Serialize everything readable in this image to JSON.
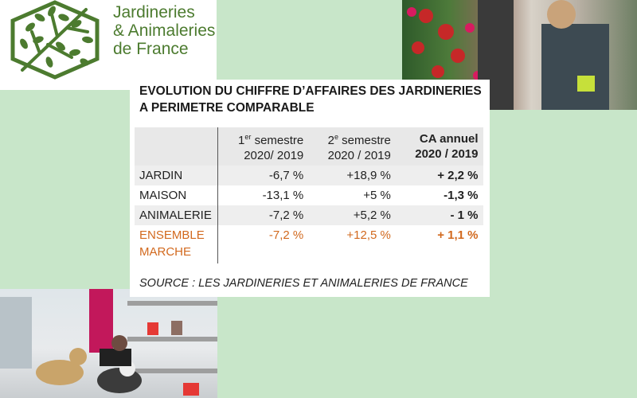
{
  "logo": {
    "icon": "tree-leaves-hexagon-icon",
    "line1": "Jardineries",
    "line2": "& Animaleries",
    "line3": "de France",
    "color": "#4c7b2f"
  },
  "photos": {
    "top": "garden-center-workers-photo",
    "bottom": "pet-store-dogs-photo"
  },
  "card": {
    "title": "EVOLUTION DU CHIFFRE D’AFFAIRES DES JARDINERIES A PERIMETRE COMPARABLE",
    "headers": {
      "col1_num": "1",
      "col1_sup": "er",
      "col1_rest": " semestre",
      "col1_line2": "2020/ 2019",
      "col2_num": "2",
      "col2_sup": "e",
      "col2_rest": " semestre",
      "col2_line2": "2020 / 2019",
      "col3_line1": "CA annuel",
      "col3_line2": "2020 / 2019"
    },
    "rows": [
      {
        "label": "JARDIN",
        "s1": "-6,7 %",
        "s2": "+18,9 %",
        "annual": "+ 2,2 %"
      },
      {
        "label": "MAISON",
        "s1": "-13,1 %",
        "s2": "+5 %",
        "annual": "-1,3 %"
      },
      {
        "label": "ANIMALERIE",
        "s1": "-7,2 %",
        "s2": "+5,2 %",
        "annual": "- 1 %"
      }
    ],
    "total": {
      "label_line1": "ENSEMBLE",
      "label_line2": "MARCHE",
      "s1": "-7,2 %",
      "s2": "+12,5 %",
      "annual": "+ 1,1 %",
      "color": "#d2691e"
    },
    "source": "SOURCE : LES JARDINERIES ET ANIMALERIES DE FRANCE"
  }
}
